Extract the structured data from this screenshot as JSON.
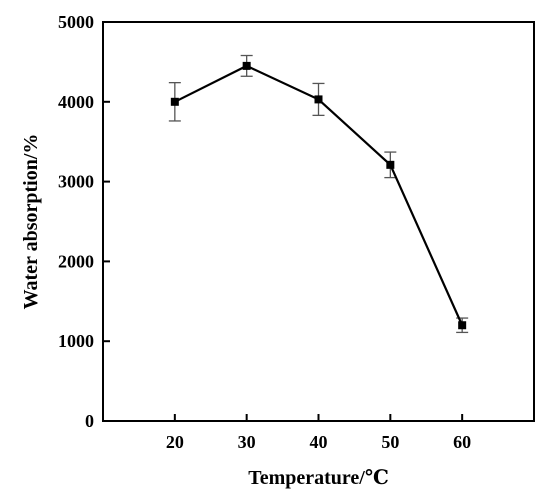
{
  "chart_data": {
    "type": "line",
    "title": "",
    "xlabel": "Temperature/℃",
    "ylabel": "Water absorption/%",
    "x": [
      20,
      30,
      40,
      50,
      60
    ],
    "xlim": [
      10,
      70
    ],
    "ylim": [
      0,
      5000
    ],
    "xticks": [
      "20",
      "30",
      "40",
      "50",
      "60"
    ],
    "yticks": [
      "0",
      "1000",
      "2000",
      "3000",
      "4000",
      "5000"
    ],
    "grid": false,
    "legend": "none",
    "series": [
      {
        "values": [
          4000,
          4450,
          4030,
          3210,
          1200
        ],
        "error": [
          240,
          130,
          200,
          160,
          90
        ],
        "color": "#000000",
        "marker": "square"
      }
    ]
  }
}
